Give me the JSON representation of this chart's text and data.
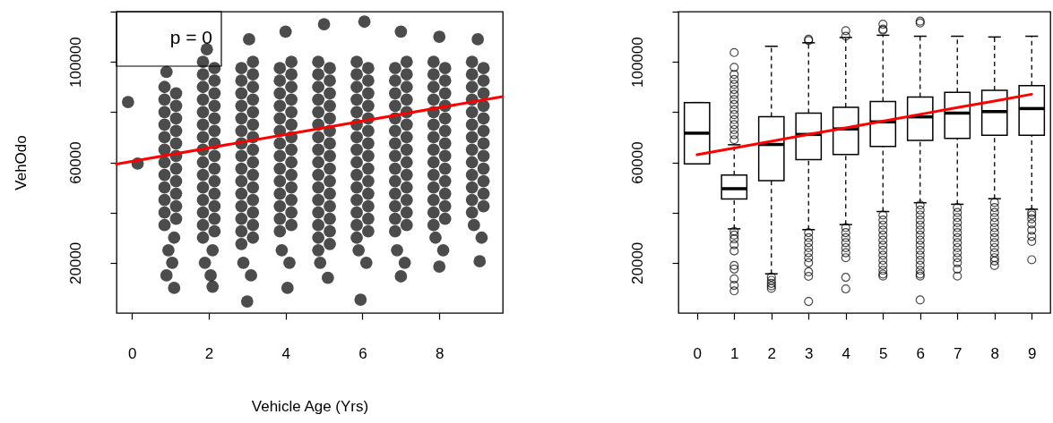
{
  "chart_data": [
    {
      "type": "scatter",
      "xlabel": "Vehicle Age (Yrs)",
      "ylabel": "VehOdo",
      "annotations": [
        "p = 0"
      ],
      "marker": "circle",
      "xlim": [
        -0.4,
        9.65
      ],
      "ylim": [
        0,
        120000
      ],
      "xticks": [
        0,
        2,
        4,
        6,
        8
      ],
      "yticks": [
        20000,
        {
          "value": 40000,
          "label": null
        },
        60000,
        {
          "value": 80000,
          "label": null
        },
        100000,
        {
          "value": 120000,
          "label": null
        }
      ],
      "series": [
        {
          "color": "#000000",
          "x": [
            -0.1,
            0.15
          ],
          "values": [
            84000,
            59500
          ]
        },
        {
          "color": "#000000",
          "x": [
            0.85,
            1.15,
            0.85,
            1.15,
            0.85,
            1.15,
            0.85,
            1.15,
            0.85,
            1.15,
            0.85,
            1.15,
            0.85,
            1.15,
            0.85,
            1.15,
            0.85,
            1.15,
            0.85,
            1.15,
            0.85,
            1.15,
            0.85,
            0.9,
            1.1,
            0.95,
            1.05,
            0.9,
            1.1
          ],
          "values": [
            35000,
            37500,
            40000,
            42500,
            45000,
            47500,
            50000,
            52500,
            55000,
            57500,
            60000,
            62500,
            65000,
            67500,
            70000,
            72500,
            75000,
            77500,
            80000,
            82500,
            85000,
            87500,
            90000,
            96000,
            30000,
            25000,
            20000,
            15000,
            10000
          ]
        },
        {
          "color": "#000000",
          "x": [
            1.85,
            2.15,
            1.85,
            2.15,
            1.85,
            2.15,
            1.85,
            2.15,
            1.85,
            2.15,
            1.85,
            2.15,
            1.85,
            2.15,
            1.85,
            2.15,
            1.85,
            2.15,
            1.85,
            2.15,
            1.85,
            2.15,
            1.85,
            2.15,
            1.85,
            2.15,
            1.85,
            2.15,
            1.85,
            1.95,
            2.1,
            1.9,
            2.05,
            2.1
          ],
          "values": [
            30000,
            32500,
            35000,
            37500,
            40000,
            42500,
            45000,
            47500,
            50000,
            52500,
            55000,
            57500,
            60000,
            62500,
            65000,
            67500,
            70000,
            72500,
            75000,
            77500,
            80000,
            82500,
            85000,
            87500,
            90000,
            92500,
            95000,
            97500,
            100000,
            105000,
            25000,
            20000,
            15000,
            10500
          ]
        },
        {
          "color": "#000000",
          "x": [
            2.85,
            3.15,
            2.85,
            3.15,
            2.85,
            3.15,
            2.85,
            3.15,
            2.85,
            3.15,
            2.85,
            3.15,
            2.85,
            3.15,
            2.85,
            3.15,
            2.85,
            3.15,
            2.85,
            3.15,
            2.85,
            3.15,
            2.85,
            3.15,
            2.85,
            3.15,
            2.85,
            3.15,
            2.85,
            3.15,
            3.05,
            2.9,
            3.1,
            3.0
          ],
          "values": [
            27500,
            30000,
            32500,
            35000,
            37500,
            40000,
            42500,
            45000,
            47500,
            50000,
            52500,
            55000,
            57500,
            60000,
            62500,
            65000,
            67500,
            70000,
            72500,
            75000,
            77500,
            80000,
            82500,
            85000,
            87500,
            90000,
            92500,
            95000,
            97500,
            100000,
            109000,
            20000,
            15000,
            4600
          ]
        },
        {
          "color": "#000000",
          "x": [
            3.85,
            4.15,
            3.85,
            4.15,
            3.85,
            4.15,
            3.85,
            4.15,
            3.85,
            4.15,
            3.85,
            4.15,
            3.85,
            4.15,
            3.85,
            4.15,
            3.85,
            4.15,
            3.85,
            4.15,
            3.85,
            4.15,
            3.85,
            4.15,
            3.85,
            4.15,
            3.85,
            4.15,
            4.0,
            3.9,
            4.1,
            4.05
          ],
          "values": [
            32500,
            35000,
            37500,
            40000,
            42500,
            45000,
            47500,
            50000,
            52500,
            55000,
            57500,
            60000,
            62500,
            65000,
            67500,
            70000,
            72500,
            75000,
            77500,
            80000,
            82500,
            85000,
            87500,
            90000,
            92500,
            95000,
            97500,
            100000,
            112000,
            25000,
            20000,
            10000
          ]
        },
        {
          "color": "#000000",
          "x": [
            4.85,
            5.15,
            4.85,
            5.15,
            4.85,
            5.15,
            4.85,
            5.15,
            4.85,
            5.15,
            4.85,
            5.15,
            4.85,
            5.15,
            4.85,
            5.15,
            4.85,
            5.15,
            4.85,
            5.15,
            4.85,
            5.15,
            4.85,
            5.15,
            4.85,
            5.15,
            4.85,
            5.15,
            4.85,
            5.15,
            4.85,
            5.0,
            4.9,
            5.1
          ],
          "values": [
            25000,
            27500,
            30000,
            32500,
            35000,
            37500,
            40000,
            42500,
            45000,
            47500,
            50000,
            52500,
            55000,
            57500,
            60000,
            62500,
            65000,
            67500,
            70000,
            72500,
            75000,
            77500,
            80000,
            82500,
            85000,
            87500,
            90000,
            92500,
            95000,
            97500,
            100000,
            115000,
            20000,
            14000
          ]
        },
        {
          "color": "#000000",
          "x": [
            5.85,
            6.15,
            5.85,
            6.15,
            5.85,
            6.15,
            5.85,
            6.15,
            5.85,
            6.15,
            5.85,
            6.15,
            5.85,
            6.15,
            5.85,
            6.15,
            5.85,
            6.15,
            5.85,
            6.15,
            5.85,
            6.15,
            5.85,
            6.15,
            5.85,
            6.15,
            5.85,
            6.15,
            5.85,
            6.05,
            5.9,
            6.1,
            5.95
          ],
          "values": [
            30000,
            32500,
            35000,
            37500,
            40000,
            42500,
            45000,
            47500,
            50000,
            52500,
            55000,
            57500,
            60000,
            62500,
            65000,
            67500,
            70000,
            72500,
            75000,
            77500,
            80000,
            82500,
            85000,
            87500,
            90000,
            92500,
            95000,
            97500,
            100000,
            116000,
            25000,
            20000,
            5300
          ]
        },
        {
          "color": "#000000",
          "x": [
            6.85,
            7.15,
            6.85,
            7.15,
            6.85,
            7.15,
            6.85,
            7.15,
            6.85,
            7.15,
            6.85,
            7.15,
            6.85,
            7.15,
            6.85,
            7.15,
            6.85,
            7.15,
            6.85,
            7.15,
            6.85,
            7.15,
            6.85,
            7.15,
            6.85,
            7.15,
            6.85,
            7.15,
            7.0,
            6.9,
            7.1,
            7.0
          ],
          "values": [
            32500,
            35000,
            37500,
            40000,
            42500,
            45000,
            47500,
            50000,
            52500,
            55000,
            57500,
            60000,
            62500,
            65000,
            67500,
            70000,
            72500,
            75000,
            77500,
            80000,
            82500,
            85000,
            87500,
            90000,
            92500,
            95000,
            97500,
            100000,
            112000,
            25000,
            20000,
            14600
          ]
        },
        {
          "color": "#000000",
          "x": [
            7.85,
            8.15,
            7.85,
            8.15,
            7.85,
            8.15,
            7.85,
            8.15,
            7.85,
            8.15,
            7.85,
            8.15,
            7.85,
            8.15,
            7.85,
            8.15,
            7.85,
            8.15,
            7.85,
            8.15,
            7.85,
            8.15,
            7.85,
            8.15,
            7.85,
            8.15,
            7.85,
            8.0,
            7.9,
            8.1,
            8.0
          ],
          "values": [
            35000,
            37500,
            40000,
            42500,
            45000,
            47500,
            50000,
            52500,
            55000,
            57500,
            60000,
            62500,
            65000,
            67500,
            70000,
            72500,
            75000,
            77500,
            80000,
            82500,
            85000,
            87500,
            90000,
            92500,
            95000,
            97500,
            100000,
            110000,
            30000,
            25000,
            18500
          ]
        },
        {
          "color": "#000000",
          "x": [
            8.85,
            9.15,
            8.85,
            9.15,
            8.85,
            9.15,
            8.85,
            9.15,
            8.85,
            9.15,
            8.85,
            9.15,
            8.85,
            9.15,
            8.85,
            9.15,
            8.85,
            9.15,
            8.85,
            9.15,
            8.85,
            9.15,
            8.85,
            9.15,
            8.85,
            9.0,
            8.9,
            9.1,
            9.05
          ],
          "values": [
            40000,
            42500,
            45000,
            47500,
            50000,
            52500,
            55000,
            57500,
            60000,
            62500,
            65000,
            67500,
            70000,
            72500,
            75000,
            77500,
            80000,
            82500,
            85000,
            87500,
            90000,
            92500,
            95000,
            97500,
            100000,
            109000,
            35000,
            30000,
            20600
          ]
        },
        {
          "type": "line",
          "color": "#ff0000",
          "x": [
            -0.4,
            9.65
          ],
          "values": [
            59300,
            86200
          ],
          "marker": "none"
        }
      ]
    },
    {
      "type": "box",
      "categories": [
        "0",
        "1",
        "2",
        "3",
        "4",
        "5",
        "6",
        "7",
        "8",
        "9"
      ],
      "ylim": [
        0,
        120000
      ],
      "yticks": [
        20000,
        {
          "value": 40000,
          "label": null
        },
        60000,
        {
          "value": 80000,
          "label": null
        },
        100000,
        {
          "value": 120000,
          "label": null
        }
      ],
      "series": [
        {
          "type": "box",
          "color": "#000000",
          "boxes": [
            {
              "low": 59400,
              "q1": 59400,
              "median": 71600,
              "q3": 83800,
              "high": 83800
            },
            {
              "low": 33500,
              "q1": 45400,
              "median": 49500,
              "q3": 54900,
              "high": 67000,
              "outliers": [
                69000,
                71000,
                73000,
                75000,
                77000,
                79000,
                81000,
                83000,
                85000,
                87000,
                89000,
                91000,
                93000,
                95000,
                97800,
                103700,
                32500,
                31000,
                29500,
                27200,
                24700,
                18900,
                17500,
                13600,
                11000,
                8800
              ]
            },
            {
              "low": 15600,
              "q1": 52700,
              "median": 67100,
              "q3": 78200,
              "high": 106200,
              "outliers": [
                14300,
                13000,
                11800,
                10800,
                9800
              ]
            },
            {
              "low": 33200,
              "q1": 61100,
              "median": 71100,
              "q3": 79600,
              "high": 107600,
              "outliers": [
                108500,
                109000,
                32000,
                30000,
                28000,
                26000,
                24000,
                22000,
                20000,
                16400,
                14600,
                4600
              ]
            },
            {
              "low": 35200,
              "q1": 63100,
              "median": 73300,
              "q3": 81900,
              "high": 109700,
              "outliers": [
                110200,
                112400,
                34000,
                32000,
                30000,
                28000,
                26000,
                24000,
                22000,
                14200,
                9600
              ]
            },
            {
              "low": 40400,
              "q1": 66300,
              "median": 76100,
              "q3": 84200,
              "high": 110600,
              "outliers": [
                112600,
                113000,
                115000,
                39000,
                37000,
                35000,
                33000,
                31000,
                29000,
                27000,
                25000,
                23000,
                21000,
                19000,
                17000,
                15500,
                14700
              ]
            },
            {
              "low": 43900,
              "q1": 68700,
              "median": 78100,
              "q3": 86000,
              "high": 110200,
              "outliers": [
                115500,
                116200,
                43000,
                41000,
                39000,
                37000,
                35000,
                33000,
                31000,
                29000,
                27000,
                25000,
                23000,
                21000,
                19000,
                17000,
                15500,
                14700,
                5200
              ]
            },
            {
              "low": 43300,
              "q1": 69500,
              "median": 79600,
              "q3": 87900,
              "high": 110200,
              "outliers": [
                42000,
                40000,
                38000,
                36000,
                34000,
                32000,
                30000,
                28000,
                26000,
                24000,
                22000,
                20000,
                17500,
                14700
              ]
            },
            {
              "low": 45500,
              "q1": 70800,
              "median": 80200,
              "q3": 88700,
              "high": 109900,
              "outliers": [
                44000,
                42000,
                40000,
                38000,
                36000,
                34000,
                32000,
                30000,
                28000,
                26000,
                24000,
                22000,
                20700,
                18900
              ]
            },
            {
              "low": 41300,
              "q1": 70800,
              "median": 81400,
              "q3": 90500,
              "high": 110200,
              "outliers": [
                40000,
                39000,
                37500,
                35500,
                33000,
                30500,
                28500,
                21200
              ]
            }
          ]
        },
        {
          "type": "line",
          "color": "#ff0000",
          "values": [
            63000,
            65700,
            68400,
            71100,
            73700,
            76400,
            79100,
            81800,
            84400,
            87100
          ]
        }
      ]
    }
  ]
}
